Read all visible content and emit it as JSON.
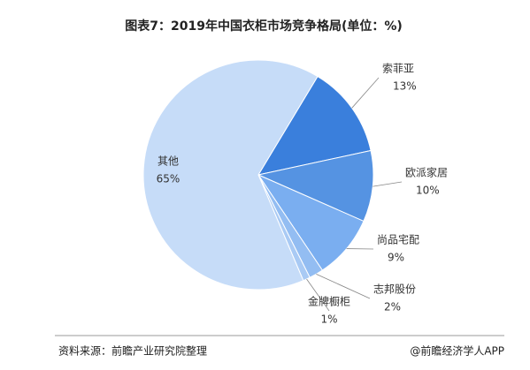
{
  "chart_data": {
    "type": "pie",
    "title": "图表7：2019年中国衣柜市场竞争格局(单位：%)",
    "categories": [
      "索菲亚",
      "欧派家居",
      "尚品宅配",
      "志邦股份",
      "金牌橱柜",
      "其他"
    ],
    "values": [
      13,
      10,
      9,
      2,
      1,
      65
    ],
    "value_labels": [
      "13%",
      "10%",
      "9%",
      "2%",
      "1%",
      "65%"
    ],
    "colors": [
      "#3a7fdc",
      "#5593e2",
      "#7aaef0",
      "#93bdf2",
      "#a9caf4",
      "#c6dcf8"
    ]
  },
  "source": "资料来源：前瞻产业研究院整理",
  "credit": "@前瞻经济学人APP"
}
